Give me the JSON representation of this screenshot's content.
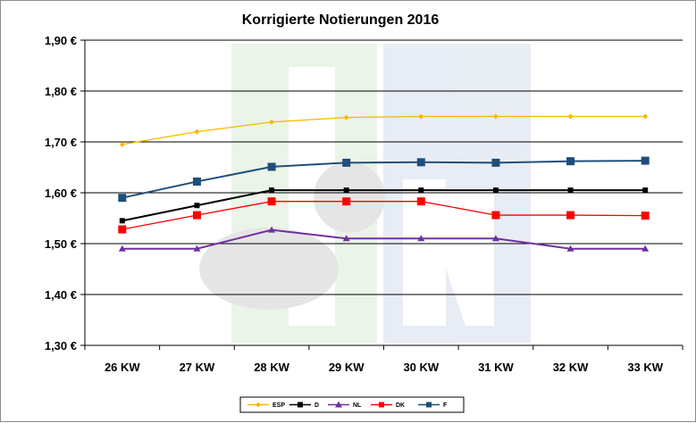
{
  "chart_data": {
    "type": "line",
    "title": "Korrigierte Notierungen 2016",
    "xlabel": "",
    "ylabel": "",
    "categories": [
      "26 KW",
      "27 KW",
      "28 KW",
      "29 KW",
      "30 KW",
      "31 KW",
      "32 KW",
      "33 KW"
    ],
    "ylim": [
      1.3,
      1.9
    ],
    "yticks": [
      1.9,
      1.8,
      1.7,
      1.6,
      1.5,
      1.4,
      1.3
    ],
    "ytick_labels": [
      "1,90 €",
      "1,80 €",
      "1,70 €",
      "1,60 €",
      "1,50 €",
      "1,40 €",
      "1,30 €"
    ],
    "grid": true,
    "legend_position": "bottom",
    "series": [
      {
        "name": "ESP",
        "color": "#f5b800",
        "marker": "diamond",
        "values": [
          1.695,
          1.72,
          1.739,
          1.748,
          1.75,
          1.75,
          1.75,
          1.75
        ]
      },
      {
        "name": "D",
        "color": "#000000",
        "marker": "square-small",
        "values": [
          1.545,
          1.575,
          1.605,
          1.605,
          1.605,
          1.605,
          1.605,
          1.605
        ]
      },
      {
        "name": "NL",
        "color": "#7030a0",
        "marker": "triangle",
        "values": [
          1.49,
          1.49,
          1.527,
          1.51,
          1.51,
          1.51,
          1.49,
          1.49
        ]
      },
      {
        "name": "DK",
        "color": "#ff0000",
        "marker": "square",
        "values": [
          1.528,
          1.556,
          1.583,
          1.583,
          1.583,
          1.556,
          1.556,
          1.555
        ]
      },
      {
        "name": "F",
        "color": "#1f4e79",
        "marker": "square",
        "values": [
          1.59,
          1.622,
          1.651,
          1.659,
          1.66,
          1.659,
          1.662,
          1.663
        ]
      }
    ]
  }
}
